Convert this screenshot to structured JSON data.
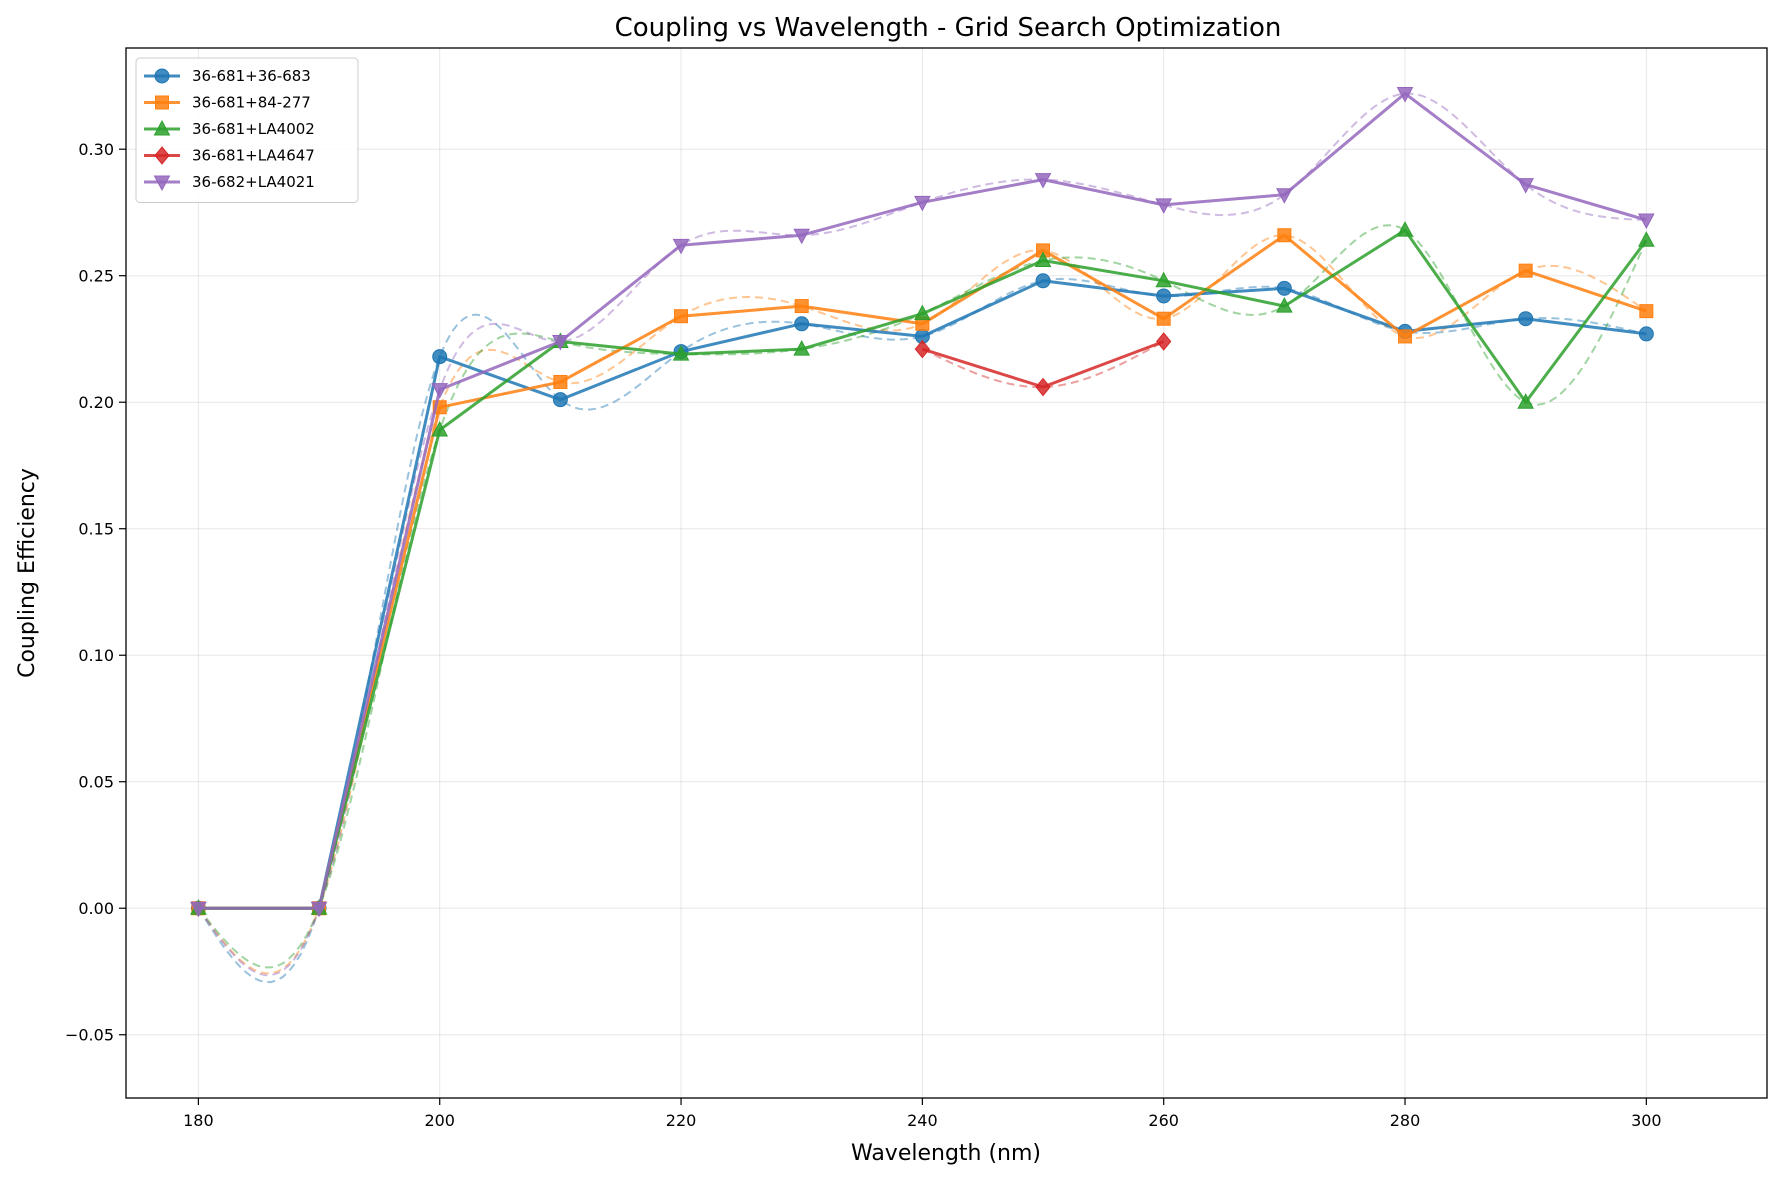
{
  "chart_data": {
    "type": "line",
    "title": "Coupling vs Wavelength - Grid Search Optimization",
    "xlabel": "Wavelength (nm)",
    "ylabel": "Coupling Efficiency",
    "xlim": [
      174,
      310
    ],
    "ylim": [
      -0.075,
      0.34
    ],
    "xticks": [
      180,
      200,
      220,
      240,
      260,
      280,
      300
    ],
    "yticks": [
      -0.05,
      0.0,
      0.05,
      0.1,
      0.15,
      0.2,
      0.25,
      0.3
    ],
    "ytick_labels": [
      "−0.05",
      "0.00",
      "0.05",
      "0.10",
      "0.15",
      "0.20",
      "0.25",
      "0.30"
    ],
    "grid": true,
    "legend_position": "top-left",
    "series": [
      {
        "name": "36-681+36-683",
        "color": "#1f77b4",
        "marker": "circle",
        "x": [
          180,
          190,
          200,
          210,
          220,
          230,
          240,
          250,
          260,
          270,
          280,
          290,
          300
        ],
        "y": [
          0.0,
          0.0,
          0.218,
          0.201,
          0.22,
          0.231,
          0.226,
          0.248,
          0.242,
          0.245,
          0.228,
          0.233,
          0.227
        ]
      },
      {
        "name": "36-681+84-277",
        "color": "#ff7f0e",
        "marker": "square",
        "x": [
          180,
          190,
          200,
          210,
          220,
          230,
          240,
          250,
          260,
          270,
          280,
          290,
          300
        ],
        "y": [
          0.0,
          0.0,
          0.198,
          0.208,
          0.234,
          0.238,
          0.231,
          0.26,
          0.233,
          0.266,
          0.226,
          0.252,
          0.236
        ]
      },
      {
        "name": "36-681+LA4002",
        "color": "#2ca02c",
        "marker": "triangle-up",
        "x": [
          180,
          190,
          200,
          210,
          220,
          230,
          240,
          250,
          260,
          270,
          280,
          290,
          300
        ],
        "y": [
          0.0,
          0.0,
          0.189,
          0.224,
          0.219,
          0.221,
          0.235,
          0.256,
          0.248,
          0.238,
          0.268,
          0.2,
          0.264
        ]
      },
      {
        "name": "36-681+LA4647",
        "color": "#d62728",
        "marker": "diamond",
        "x": [
          240,
          250,
          260
        ],
        "y": [
          0.221,
          0.206,
          0.224
        ]
      },
      {
        "name": "36-682+LA4021",
        "color": "#9467bd",
        "marker": "triangle-down",
        "x": [
          180,
          190,
          200,
          210,
          220,
          230,
          240,
          250,
          260,
          270,
          280,
          290,
          300
        ],
        "y": [
          0.0,
          0.0,
          0.205,
          0.224,
          0.262,
          0.266,
          0.279,
          0.288,
          0.278,
          0.282,
          0.322,
          0.286,
          0.272
        ]
      }
    ]
  }
}
